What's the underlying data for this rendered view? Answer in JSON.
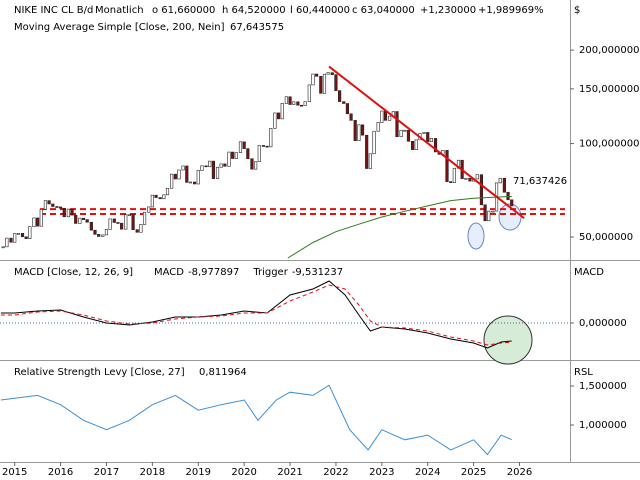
{
  "chart_data": [
    {
      "type": "candlestick",
      "title": "NIKE INC CL B/d",
      "period": "Monatlich",
      "quote": [
        "o 61,660000",
        "h 64,520000",
        "l 60,440000",
        "c 63,040000",
        "+1,230000",
        "+1,989969%"
      ],
      "y_axis_label": "$",
      "log_scale": true,
      "xlim": [
        2014.68,
        2027.1
      ],
      "ylim": [
        42.8,
        290
      ],
      "yticks": [
        {
          "value": 200,
          "label": "200,000000"
        },
        {
          "value": 150,
          "label": "150,000000"
        },
        {
          "value": 100,
          "label": "100,000000"
        },
        {
          "value": 50,
          "label": "50,000000"
        }
      ],
      "up_color": "#ffffff",
      "down_color": "#7a1010",
      "x": [
        2014.75,
        2014.83,
        2014.92,
        2015,
        2015.08,
        2015.17,
        2015.25,
        2015.33,
        2015.42,
        2015.5,
        2015.58,
        2015.67,
        2015.75,
        2015.83,
        2015.92,
        2016,
        2016.08,
        2016.17,
        2016.25,
        2016.33,
        2016.42,
        2016.5,
        2016.58,
        2016.67,
        2016.75,
        2016.83,
        2016.92,
        2017,
        2017.08,
        2017.17,
        2017.25,
        2017.33,
        2017.42,
        2017.5,
        2017.58,
        2017.67,
        2017.75,
        2017.83,
        2017.92,
        2018,
        2018.08,
        2018.17,
        2018.25,
        2018.33,
        2018.42,
        2018.5,
        2018.58,
        2018.67,
        2018.75,
        2018.83,
        2018.92,
        2019,
        2019.08,
        2019.17,
        2019.25,
        2019.33,
        2019.42,
        2019.5,
        2019.58,
        2019.67,
        2019.75,
        2019.83,
        2019.92,
        2020,
        2020.08,
        2020.17,
        2020.25,
        2020.33,
        2020.42,
        2020.5,
        2020.58,
        2020.67,
        2020.75,
        2020.83,
        2020.92,
        2021,
        2021.08,
        2021.17,
        2021.25,
        2021.33,
        2021.42,
        2021.5,
        2021.58,
        2021.67,
        2021.75,
        2021.83,
        2021.92,
        2022,
        2022.08,
        2022.17,
        2022.25,
        2022.33,
        2022.42,
        2022.5,
        2022.58,
        2022.67,
        2022.75,
        2022.83,
        2022.92,
        2023,
        2023.08,
        2023.17,
        2023.25,
        2023.33,
        2023.42,
        2023.5,
        2023.58,
        2023.67,
        2023.75,
        2023.83,
        2023.92,
        2024,
        2024.08,
        2024.17,
        2024.25,
        2024.33,
        2024.42,
        2024.5,
        2024.58,
        2024.67,
        2024.75,
        2024.83,
        2024.92,
        2025,
        2025.08,
        2025.17,
        2025.25,
        2025.33,
        2025.42,
        2025.5,
        2025.58,
        2025.67,
        2025.75,
        2025.83
      ],
      "values": [
        46.5,
        49.6,
        48.1,
        51.3,
        51.4,
        50.1,
        49.4,
        54.0,
        57.6,
        54.2,
        61.4,
        65.5,
        63.9,
        62.7,
        62.5,
        61.9,
        58.1,
        61.5,
        58.8,
        55.3,
        57.5,
        56.9,
        55.8,
        52.6,
        51.0,
        50.2,
        50.8,
        52.9,
        57.2,
        55.7,
        55.4,
        53.0,
        59.0,
        59.0,
        52.8,
        51.8,
        54.9,
        60.1,
        62.5,
        68.2,
        67.0,
        66.4,
        68.4,
        71.8,
        79.7,
        76.9,
        82.2,
        84.7,
        75.0,
        75.2,
        74.1,
        81.9,
        84.8,
        84.2,
        87.8,
        77.1,
        83.9,
        86.0,
        84.5,
        93.9,
        89.5,
        93.5,
        101.3,
        96.3,
        89.4,
        82.7,
        87.4,
        98.6,
        98.1,
        97.6,
        111.9,
        125.5,
        120.1,
        134.7,
        141.5,
        133.6,
        136.3,
        132.9,
        132.6,
        136.5,
        154.5,
        167.5,
        164.7,
        145.2,
        167.3,
        169.2,
        166.7,
        148.1,
        136.5,
        134.6,
        124.7,
        118.8,
        102.2,
        114.9,
        106.4,
        83.1,
        92.7,
        109.6,
        117.0,
        127.3,
        118.8,
        122.6,
        126.8,
        105.2,
        110.4,
        110.4,
        101.7,
        95.6,
        102.8,
        107.8,
        108.6,
        101.5,
        103.9,
        94.0,
        92.3,
        95.1,
        75.4,
        74.9,
        83.3,
        88.4,
        77.1,
        77.3,
        75.7,
        76.9,
        79.4,
        63.5,
        56.4,
        60.6,
        60.6,
        74.7,
        77.3,
        69.7,
        65.9,
        63.0
      ],
      "series": [
        {
          "name": "Moving Average Simple [Close, 200, Nein]",
          "last_label": "67,643575",
          "color": "#2e7d1e",
          "x": [
            2020.95,
            2021.5,
            2022,
            2022.5,
            2023,
            2023.5,
            2024,
            2024.5,
            2025,
            2025.83
          ],
          "values": [
            42.8,
            48,
            52,
            55,
            58,
            60.5,
            63,
            65.5,
            66.7,
            67.6
          ]
        }
      ],
      "trendline": {
        "color": "#e01010",
        "x": [
          2021.85,
          2026.1
        ],
        "values": [
          177,
          57.5
        ],
        "label": "71,637426"
      },
      "support_lines": [
        61.5,
        59.3
      ]
    },
    {
      "type": "line",
      "title": "MACD [Close, 12, 26, 9]",
      "y_axis_label": "MACD",
      "xlim": [
        2014.68,
        2027.1
      ],
      "ylim": [
        -17.5,
        30.5
      ],
      "yticks": [
        {
          "value": 0,
          "label": "0,000000"
        }
      ],
      "series": [
        {
          "name": "MACD",
          "last_label": "-8,977897",
          "color": "#000000",
          "x": [
            2014.7,
            2015,
            2015.5,
            2016,
            2016.5,
            2017,
            2017.5,
            2018,
            2018.5,
            2019,
            2019.5,
            2020,
            2020.5,
            2021,
            2021.5,
            2021.85,
            2022.2,
            2022.5,
            2022.75,
            2023,
            2023.5,
            2024,
            2024.5,
            2025,
            2025.3,
            2025.6,
            2025.83
          ],
          "values": [
            5,
            5,
            6,
            6.5,
            3,
            0,
            -1,
            0.5,
            3,
            3,
            4,
            6,
            5,
            14,
            17,
            21,
            14,
            4,
            -4,
            -2,
            -3,
            -5,
            -8,
            -10,
            -12.5,
            -9.5,
            -8.98
          ]
        },
        {
          "name": "Trigger",
          "last_label": "-9,531237",
          "color": "#e01010",
          "x": [
            2014.7,
            2015,
            2015.5,
            2016,
            2016.5,
            2017,
            2017.5,
            2018,
            2018.5,
            2019,
            2019.5,
            2020,
            2020.5,
            2021,
            2021.5,
            2021.85,
            2022.2,
            2022.5,
            2022.75,
            2023,
            2023.5,
            2024,
            2024.5,
            2025,
            2025.3,
            2025.6,
            2025.83
          ],
          "values": [
            4,
            4,
            5.5,
            6,
            4,
            1,
            -0.5,
            0,
            2,
            3,
            3.5,
            5,
            5,
            11,
            15.5,
            19,
            17,
            9,
            1,
            -2,
            -2.5,
            -4,
            -7,
            -9,
            -11,
            -10,
            -9.53
          ]
        }
      ]
    },
    {
      "type": "line",
      "title": "Relative Strength Levy [Close, 27]",
      "y_axis_label": "RSL",
      "xlim": [
        2014.68,
        2027.1
      ],
      "ylim": [
        0.551,
        1.808
      ],
      "yticks": [
        {
          "value": 1.5,
          "label": "1,500000"
        },
        {
          "value": 1,
          "label": "1,000000"
        }
      ],
      "xticks": [
        2015,
        2016,
        2017,
        2018,
        2019,
        2020,
        2021,
        2022,
        2023,
        2024,
        2025,
        2026
      ],
      "series": [
        {
          "last_label": "0,811964",
          "color": "#3a8fd6",
          "x": [
            2014.7,
            2015.5,
            2016,
            2016.5,
            2017,
            2017.5,
            2018,
            2018.5,
            2019,
            2019.5,
            2020,
            2020.3,
            2020.7,
            2021,
            2021.5,
            2021.85,
            2022.3,
            2022.7,
            2023,
            2023.5,
            2024,
            2024.5,
            2025,
            2025.3,
            2025.6,
            2025.83
          ],
          "values": [
            1.32,
            1.38,
            1.26,
            1.06,
            0.94,
            1.06,
            1.26,
            1.38,
            1.19,
            1.26,
            1.32,
            1.06,
            1.32,
            1.42,
            1.38,
            1.51,
            0.94,
            0.68,
            0.94,
            0.81,
            0.87,
            0.68,
            0.81,
            0.62,
            0.87,
            0.812
          ]
        }
      ]
    }
  ]
}
